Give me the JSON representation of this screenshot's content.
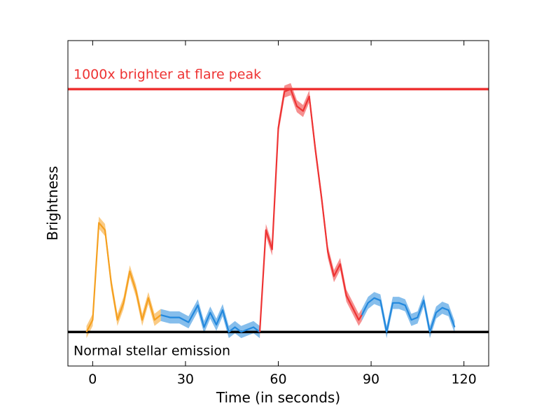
{
  "chart_data": {
    "type": "line",
    "xlabel": "Time (in seconds)",
    "ylabel": "Brightness",
    "xlim": [
      -8,
      128
    ],
    "ylim": [
      -0.14,
      1.2
    ],
    "x_ticks": [
      0,
      30,
      60,
      90,
      120
    ],
    "y_ticks_visible": false,
    "grid": false,
    "reference_lines": [
      {
        "name": "baseline",
        "y": 0,
        "color": "#000000",
        "label": "Normal stellar emission"
      },
      {
        "name": "peak",
        "y": 1.0,
        "color": "#ee3333",
        "label": "1000x brighter at flare peak"
      }
    ],
    "series": [
      {
        "color": "#f5a020",
        "x": [
          -2,
          0,
          2,
          4,
          6,
          8,
          10,
          12,
          14,
          16,
          18,
          20,
          22
        ],
        "y": [
          0.0,
          0.05,
          0.45,
          0.42,
          0.2,
          0.05,
          0.12,
          0.25,
          0.17,
          0.05,
          0.14,
          0.05,
          0.07
        ],
        "band": 0.025
      },
      {
        "color": "#2288dd",
        "x": [
          22,
          25,
          28,
          31,
          34,
          36,
          38,
          40,
          42,
          44,
          46,
          48,
          50,
          52,
          54
        ],
        "y": [
          0.07,
          0.06,
          0.06,
          0.04,
          0.11,
          0.02,
          0.08,
          0.03,
          0.09,
          0.0,
          0.02,
          0.0,
          0.01,
          0.02,
          0.0
        ],
        "band": 0.025
      },
      {
        "color": "#ee3333",
        "x": [
          54,
          56,
          58,
          60,
          62,
          64,
          66,
          68,
          70,
          72,
          74,
          76,
          78,
          80,
          82,
          84,
          86,
          87
        ],
        "y": [
          0.0,
          0.42,
          0.34,
          0.84,
          0.99,
          1.0,
          0.93,
          0.91,
          0.97,
          0.75,
          0.55,
          0.33,
          0.23,
          0.28,
          0.15,
          0.1,
          0.05,
          0.07
        ],
        "band": 0.025
      },
      {
        "color": "#2288dd",
        "x": [
          87,
          89,
          91,
          93,
          95,
          97,
          99,
          101,
          103,
          105,
          107,
          109,
          111,
          113,
          115,
          117
        ],
        "y": [
          0.07,
          0.12,
          0.14,
          0.13,
          0.0,
          0.12,
          0.12,
          0.11,
          0.05,
          0.06,
          0.13,
          0.0,
          0.08,
          0.1,
          0.09,
          0.02
        ],
        "band": 0.025
      }
    ]
  }
}
